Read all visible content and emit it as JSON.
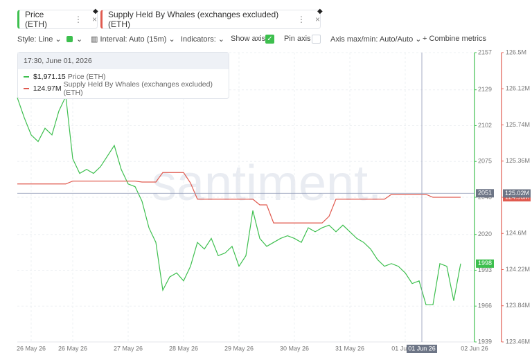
{
  "ui": {
    "toolbar": {
      "style": "Style: Line",
      "interval": "Interval: Auto (15m)",
      "indicators": "Indicators:",
      "show_axis": "Show axis",
      "pin_axis": "Pin axis",
      "axis_minmax": "Axis max/min: Auto/Auto",
      "combine": "Combine metrics"
    },
    "tooltip": {
      "time": "17:30, June 01, 2026",
      "values": [
        "$1,971.15",
        "124.97M"
      ]
    },
    "watermark": "santiment."
  },
  "chart_data": {
    "type": "line",
    "categories": [
      null,
      null,
      "26 May 26",
      null,
      null,
      null,
      null,
      null,
      "26 May 26",
      null,
      null,
      null,
      null,
      null,
      null,
      null,
      "27 May 26",
      null,
      null,
      null,
      null,
      null,
      null,
      null,
      "28 May 26",
      null,
      null,
      null,
      null,
      null,
      null,
      null,
      "29 May 26",
      null,
      null,
      null,
      null,
      null,
      null,
      null,
      "30 May 26",
      null,
      null,
      null,
      null,
      null,
      null,
      null,
      "31 May 26",
      null,
      null,
      null,
      null,
      null,
      null,
      null,
      "01 Jun 26",
      null,
      null,
      null,
      null,
      null,
      null,
      null,
      null,
      null,
      "02 Jun 26"
    ],
    "series": [
      {
        "name": "Price (ETH)",
        "color": "#3dbf4e",
        "last_value_label": true,
        "values": [
          2123,
          2108,
          2095,
          2090,
          2100,
          2095,
          2113,
          2124,
          2077,
          2066,
          2069,
          2066,
          2071,
          2079,
          2087,
          2069,
          2058,
          2056,
          2045,
          2025,
          2014,
          1978,
          1988,
          1991,
          1985,
          1996,
          2014,
          2009,
          2017,
          2004,
          2006,
          2011,
          1996,
          2004,
          2038,
          2017,
          2011,
          2014,
          2017,
          2019,
          2017,
          2014,
          2025,
          2022,
          2025,
          2027,
          2022,
          2027,
          2022,
          2017,
          2014,
          2009,
          2001,
          1996,
          1998,
          1996,
          1991,
          1983,
          1985,
          1967,
          1967,
          1998,
          1996,
          1970,
          1998,
          null,
          null
        ]
      },
      {
        "name": "Supply Held By Whales (exchanges excluded) (ETH)",
        "color": "#e05a4f",
        "axis": "y2",
        "values": [
          125.12,
          125.12,
          125.12,
          125.12,
          125.12,
          125.12,
          125.12,
          125.12,
          125.15,
          125.15,
          125.15,
          125.15,
          125.15,
          125.15,
          125.15,
          125.15,
          125.15,
          125.15,
          125.14,
          125.14,
          125.14,
          125.24,
          125.24,
          125.24,
          125.24,
          125.13,
          124.96,
          124.96,
          124.96,
          124.96,
          124.96,
          124.96,
          124.96,
          124.96,
          124.96,
          124.9,
          124.9,
          124.71,
          124.71,
          124.71,
          124.71,
          124.71,
          124.71,
          124.71,
          124.71,
          124.78,
          124.96,
          124.96,
          124.96,
          124.96,
          124.96,
          124.96,
          124.96,
          124.96,
          125.01,
          125.01,
          125.01,
          125.01,
          125.01,
          125.01,
          124.98,
          124.98,
          124.98,
          124.98,
          124.98,
          null,
          null
        ],
        "value_labels": [
          null,
          null,
          null,
          null,
          null,
          null,
          null,
          null,
          null,
          null,
          null,
          null,
          null,
          null,
          null,
          null,
          null,
          null,
          null,
          null,
          null,
          null,
          null,
          null,
          null,
          null,
          null,
          null,
          null,
          null,
          null,
          null,
          null,
          null,
          null,
          null,
          null,
          null,
          null,
          null,
          null,
          null,
          null,
          null,
          null,
          null,
          null,
          null,
          null,
          null,
          null,
          null,
          null,
          null,
          null,
          null,
          null,
          null,
          null,
          null,
          null,
          null,
          null,
          null,
          "124.98M",
          null,
          null
        ]
      }
    ],
    "ylim": [
      1939,
      2157
    ],
    "yticks": [
      1939,
      1966,
      1993,
      2020,
      2048,
      2075,
      2102,
      2129,
      2157
    ],
    "y2lim": [
      123.46,
      126.5
    ],
    "y2ticks": [
      {
        "value": 123.46,
        "label": "123.46M"
      },
      {
        "value": 123.84,
        "label": "123.84M"
      },
      {
        "value": 124.22,
        "label": "124.22M"
      },
      {
        "value": 124.6,
        "label": "124.6M"
      },
      {
        "value": 124.98,
        "label": "124.98M"
      },
      {
        "value": 125.36,
        "label": "125.36M"
      },
      {
        "value": 125.74,
        "label": "125.74M"
      },
      {
        "value": 126.12,
        "label": "126.12M"
      },
      {
        "value": 126.5,
        "label": "126.5M"
      }
    ],
    "grid": true,
    "crosshair": {
      "x_label": "01 Jun 26",
      "y": 2051,
      "y2": {
        "value": 125.02,
        "label": "125.02M"
      }
    }
  }
}
